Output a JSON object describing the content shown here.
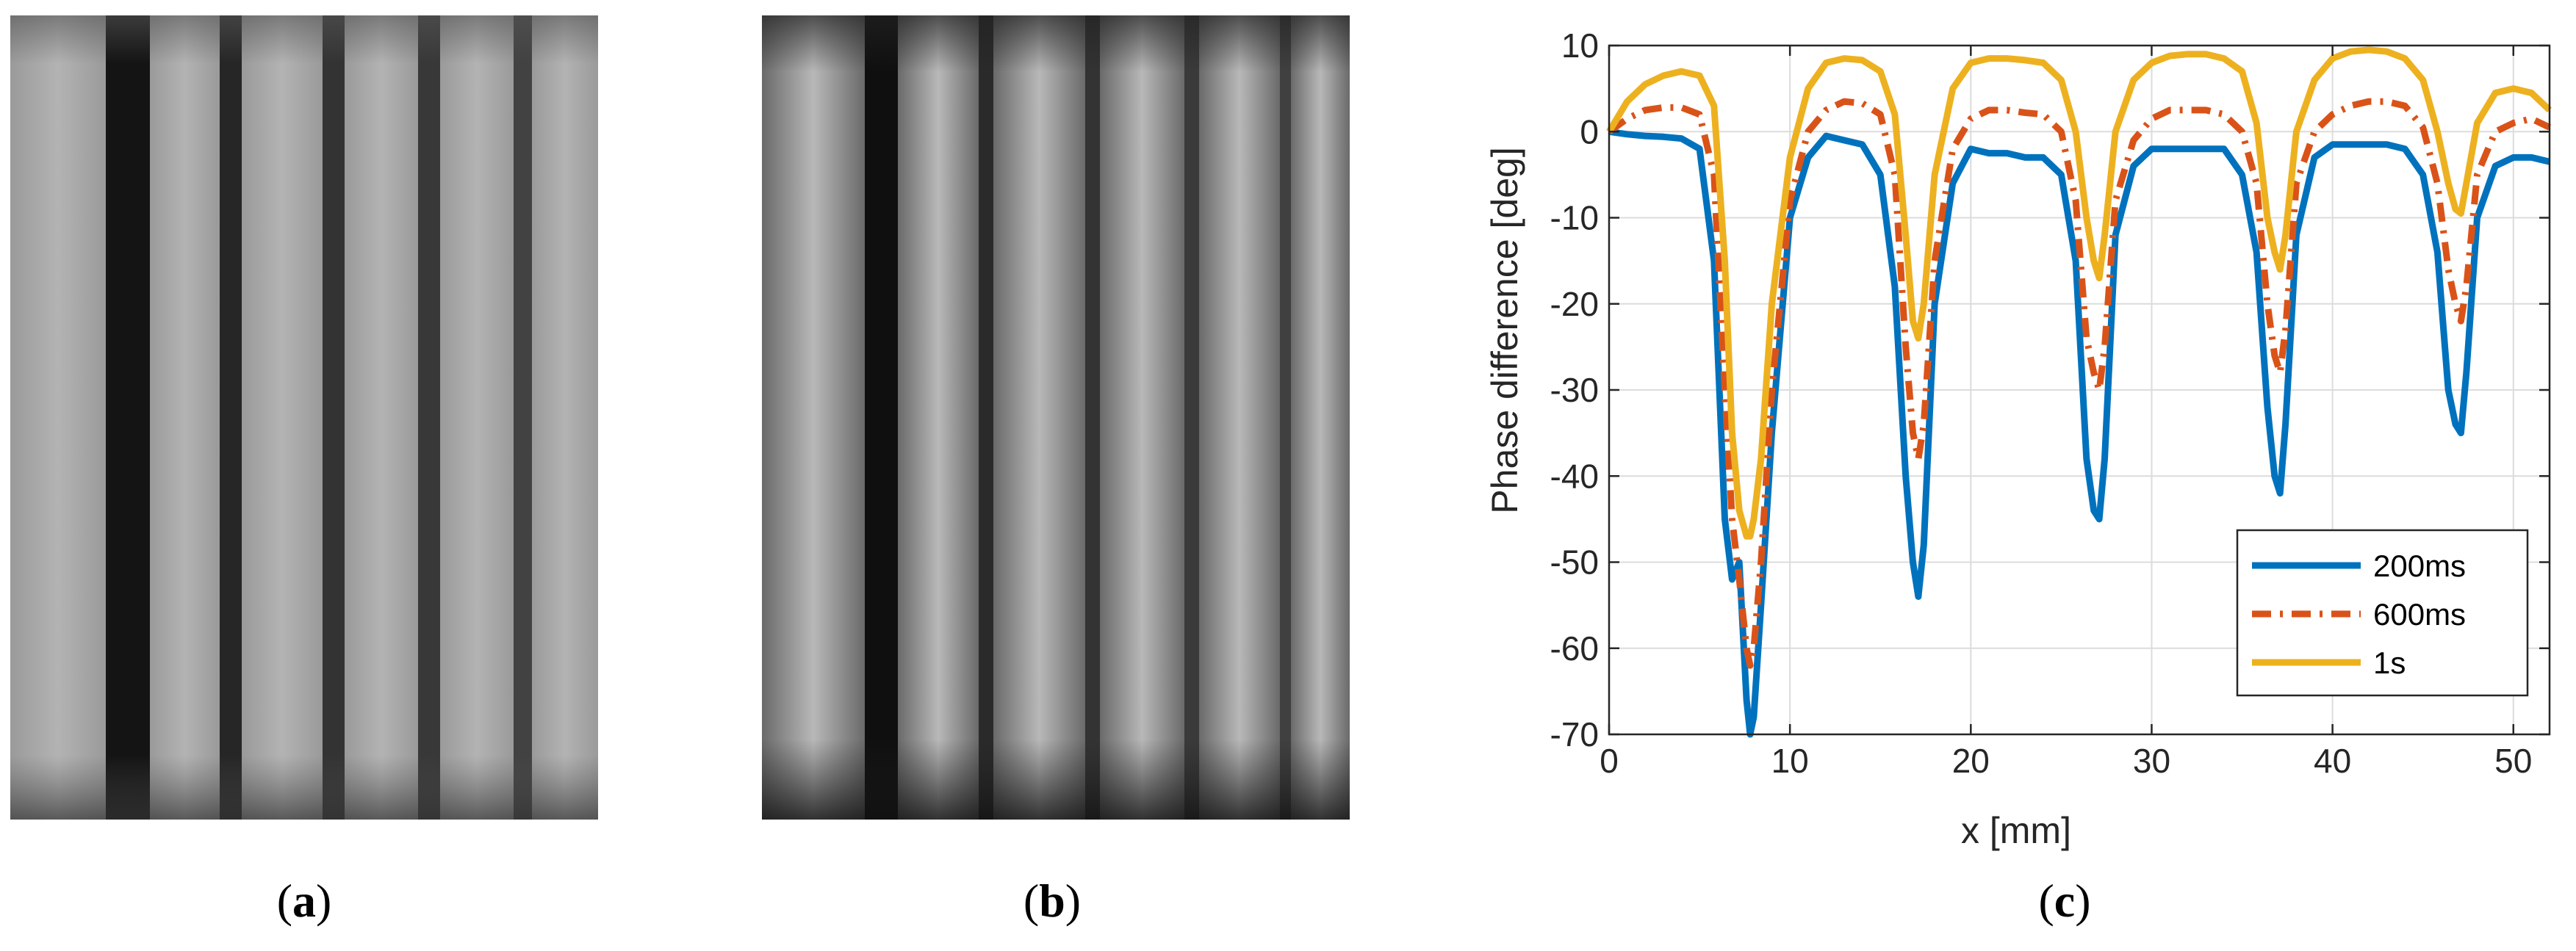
{
  "captions": {
    "a": "a",
    "b": "b",
    "c": "c"
  },
  "images": {
    "a": {
      "description_icon": "thermal-image-a"
    },
    "b": {
      "description_icon": "thermal-image-b"
    }
  },
  "colors": {
    "series_200ms": "#0072BD",
    "series_600ms": "#D95319",
    "series_1s": "#EDB120"
  },
  "chart_data": {
    "type": "line",
    "title": "",
    "xlabel": "x [mm]",
    "ylabel": "Phase difference [deg]",
    "xlim": [
      0,
      52
    ],
    "ylim": [
      -70,
      10
    ],
    "xticks": [
      0,
      10,
      20,
      30,
      40,
      50
    ],
    "yticks": [
      10,
      0,
      -10,
      -20,
      -30,
      -40,
      -50,
      -60,
      -70
    ],
    "grid": true,
    "legend_position": "lower-right",
    "series": [
      {
        "name": "200ms",
        "style": "solid",
        "color": "#0072BD",
        "x": [
          0,
          1,
          2,
          3,
          4,
          5,
          5.8,
          6.4,
          6.8,
          7.2,
          7.6,
          7.8,
          8.0,
          8.4,
          9,
          10,
          11,
          12,
          13,
          14,
          15,
          15.8,
          16.4,
          16.8,
          17.1,
          17.4,
          18,
          19,
          20,
          21,
          22,
          23,
          24,
          25,
          25.8,
          26.4,
          26.8,
          27.1,
          27.4,
          28,
          29,
          30,
          31,
          32,
          33,
          34,
          35,
          35.8,
          36.4,
          36.8,
          37.1,
          37.4,
          38,
          39,
          40,
          41,
          42,
          43,
          44,
          45,
          45.8,
          46.4,
          46.8,
          47.1,
          47.4,
          48,
          49,
          50,
          51,
          52
        ],
        "y": [
          0,
          -0.3,
          -0.5,
          -0.6,
          -0.8,
          -2,
          -15,
          -45,
          -52,
          -50,
          -66,
          -70,
          -68,
          -55,
          -35,
          -10,
          -3,
          -0.5,
          -1,
          -1.5,
          -5,
          -18,
          -40,
          -50,
          -54,
          -48,
          -20,
          -6,
          -2,
          -2.5,
          -2.5,
          -3,
          -3,
          -5,
          -15,
          -38,
          -44,
          -45,
          -38,
          -12,
          -4,
          -2,
          -2,
          -2,
          -2,
          -2,
          -5,
          -14,
          -32,
          -40,
          -42,
          -34,
          -12,
          -3,
          -1.5,
          -1.5,
          -1.5,
          -1.5,
          -2,
          -5,
          -14,
          -30,
          -34,
          -35,
          -28,
          -10,
          -4,
          -3,
          -3,
          -3.5
        ]
      },
      {
        "name": "600ms",
        "style": "dashdot",
        "color": "#D95319",
        "x": [
          0,
          1,
          2,
          3,
          4,
          5,
          5.8,
          6.4,
          6.8,
          7.2,
          7.6,
          7.8,
          8.0,
          8.4,
          9,
          10,
          11,
          12,
          13,
          14,
          15,
          15.8,
          16.4,
          16.8,
          17.1,
          17.4,
          18,
          19,
          20,
          21,
          22,
          23,
          24,
          25,
          25.8,
          26.4,
          26.8,
          27.1,
          27.4,
          28,
          29,
          30,
          31,
          32,
          33,
          34,
          35,
          35.8,
          36.4,
          36.8,
          37.1,
          37.4,
          38,
          39,
          40,
          41,
          42,
          43,
          44,
          45,
          45.8,
          46.4,
          46.8,
          47.1,
          47.4,
          48,
          49,
          50,
          51,
          52
        ],
        "y": [
          0,
          1.5,
          2.5,
          2.8,
          2.8,
          2,
          -5,
          -30,
          -45,
          -52,
          -60,
          -62,
          -60,
          -50,
          -30,
          -8,
          0,
          2.5,
          3.5,
          3.3,
          2,
          -5,
          -25,
          -35,
          -38,
          -34,
          -15,
          -2,
          1.5,
          2.5,
          2.5,
          2.2,
          2,
          0,
          -8,
          -24,
          -28,
          -30,
          -25,
          -8,
          -1,
          1.5,
          2.5,
          2.5,
          2.5,
          2,
          0,
          -6,
          -20,
          -26,
          -28,
          -23,
          -6,
          0,
          2,
          3,
          3.5,
          3.5,
          3,
          0.5,
          -6,
          -16,
          -20,
          -22,
          -18,
          -5,
          0,
          1,
          1.5,
          0.5
        ]
      },
      {
        "name": "1s",
        "style": "solid",
        "color": "#EDB120",
        "x": [
          0,
          1,
          2,
          3,
          4,
          5,
          5.8,
          6.4,
          6.8,
          7.2,
          7.6,
          7.8,
          8.0,
          8.4,
          9,
          10,
          11,
          12,
          13,
          14,
          15,
          15.8,
          16.4,
          16.8,
          17.1,
          17.4,
          18,
          19,
          20,
          21,
          22,
          23,
          24,
          25,
          25.8,
          26.4,
          26.8,
          27.1,
          27.4,
          28,
          29,
          30,
          31,
          32,
          33,
          34,
          35,
          35.8,
          36.4,
          36.8,
          37.1,
          37.4,
          38,
          39,
          40,
          41,
          42,
          43,
          44,
          45,
          45.8,
          46.4,
          46.8,
          47.1,
          47.4,
          48,
          49,
          50,
          51,
          52
        ],
        "y": [
          0,
          3.5,
          5.5,
          6.5,
          7,
          6.5,
          3,
          -15,
          -35,
          -44,
          -47,
          -47,
          -45,
          -38,
          -20,
          -3,
          5,
          8,
          8.5,
          8.3,
          7,
          2,
          -12,
          -22,
          -24,
          -20,
          -5,
          5,
          8,
          8.5,
          8.5,
          8.3,
          8,
          6,
          0,
          -10,
          -15,
          -17,
          -12,
          0,
          6,
          8,
          8.8,
          9,
          9,
          8.5,
          7,
          1,
          -10,
          -14,
          -16,
          -12,
          0,
          6,
          8.5,
          9.3,
          9.5,
          9.3,
          8.5,
          6,
          0,
          -6,
          -9,
          -9.5,
          -6,
          1,
          4.5,
          5,
          4.5,
          2.5
        ]
      }
    ]
  }
}
